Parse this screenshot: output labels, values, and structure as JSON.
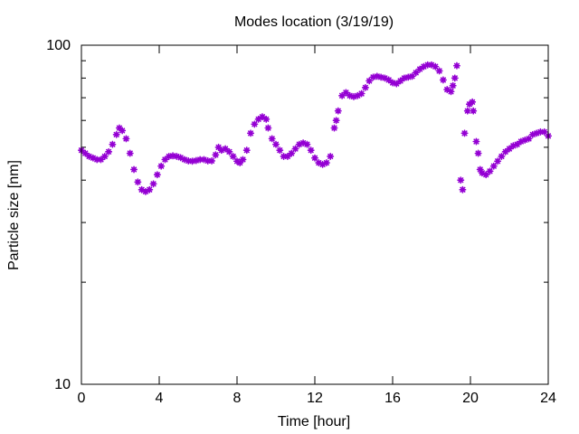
{
  "chart_data": {
    "type": "scatter",
    "title": "Modes location (3/19/19)",
    "xlabel": "Time [hour]",
    "ylabel": "Particle size [nm]",
    "xlim": [
      0,
      24
    ],
    "ylim": [
      10,
      100
    ],
    "yscale": "log",
    "grid": false,
    "legend": "none",
    "marker": "asterisk",
    "color": "#9400d3",
    "x_ticks": [
      0,
      4,
      8,
      12,
      16,
      20,
      24
    ],
    "x_tick_labels": [
      "0",
      "4",
      "8",
      "12",
      "16",
      "20",
      "24"
    ],
    "y_major_ticks": [
      10,
      100
    ],
    "y_tick_labels": [
      "10",
      "100"
    ],
    "y_minor_ticks": [
      20,
      30,
      40,
      50,
      60,
      70,
      80,
      90
    ],
    "series": [
      {
        "points": [
          [
            0.0,
            49
          ],
          [
            0.2,
            48
          ],
          [
            0.4,
            47
          ],
          [
            0.6,
            46.5
          ],
          [
            0.8,
            46
          ],
          [
            1.0,
            46
          ],
          [
            1.2,
            47
          ],
          [
            1.4,
            48.5
          ],
          [
            1.6,
            51
          ],
          [
            1.8,
            54.5
          ],
          [
            1.95,
            57
          ],
          [
            2.1,
            56
          ],
          [
            2.3,
            53
          ],
          [
            2.5,
            48
          ],
          [
            2.7,
            43
          ],
          [
            2.9,
            39.5
          ],
          [
            3.1,
            37.5
          ],
          [
            3.3,
            37
          ],
          [
            3.5,
            37.5
          ],
          [
            3.7,
            39
          ],
          [
            3.9,
            41.5
          ],
          [
            4.1,
            44
          ],
          [
            4.3,
            46
          ],
          [
            4.5,
            47
          ],
          [
            4.7,
            47.2
          ],
          [
            4.9,
            47
          ],
          [
            5.1,
            46.6
          ],
          [
            5.3,
            46
          ],
          [
            5.5,
            45.6
          ],
          [
            5.7,
            45.5
          ],
          [
            5.9,
            45.7
          ],
          [
            6.1,
            46
          ],
          [
            6.3,
            46
          ],
          [
            6.5,
            45.6
          ],
          [
            6.7,
            45.6
          ],
          [
            6.9,
            47.5
          ],
          [
            7.05,
            50
          ],
          [
            7.2,
            49
          ],
          [
            7.4,
            49.5
          ],
          [
            7.6,
            48.5
          ],
          [
            7.8,
            47
          ],
          [
            8.0,
            45.5
          ],
          [
            8.15,
            45
          ],
          [
            8.3,
            46
          ],
          [
            8.5,
            49
          ],
          [
            8.7,
            55
          ],
          [
            8.9,
            58.5
          ],
          [
            9.1,
            60.5
          ],
          [
            9.3,
            61.5
          ],
          [
            9.5,
            60.5
          ],
          [
            9.6,
            57
          ],
          [
            9.8,
            53
          ],
          [
            10.0,
            51
          ],
          [
            10.2,
            49
          ],
          [
            10.4,
            47
          ],
          [
            10.6,
            47
          ],
          [
            10.8,
            48
          ],
          [
            11.0,
            49.5
          ],
          [
            11.2,
            51
          ],
          [
            11.4,
            51.5
          ],
          [
            11.6,
            51
          ],
          [
            11.8,
            49
          ],
          [
            12.0,
            46.5
          ],
          [
            12.2,
            45
          ],
          [
            12.4,
            44.5
          ],
          [
            12.6,
            45
          ],
          [
            12.8,
            47
          ],
          [
            13.0,
            57
          ],
          [
            13.1,
            60
          ],
          [
            13.2,
            64
          ],
          [
            13.4,
            71
          ],
          [
            13.6,
            72.5
          ],
          [
            13.8,
            71
          ],
          [
            14.0,
            70.5
          ],
          [
            14.2,
            71
          ],
          [
            14.4,
            72
          ],
          [
            14.6,
            75
          ],
          [
            14.8,
            78.5
          ],
          [
            15.0,
            80.5
          ],
          [
            15.2,
            81
          ],
          [
            15.4,
            80.5
          ],
          [
            15.6,
            80
          ],
          [
            15.8,
            79
          ],
          [
            16.0,
            77.5
          ],
          [
            16.2,
            77
          ],
          [
            16.4,
            78.5
          ],
          [
            16.6,
            80
          ],
          [
            16.8,
            80.5
          ],
          [
            17.0,
            81
          ],
          [
            17.2,
            83
          ],
          [
            17.4,
            85
          ],
          [
            17.6,
            86.5
          ],
          [
            17.8,
            87.5
          ],
          [
            18.0,
            87.5
          ],
          [
            18.2,
            86.5
          ],
          [
            18.4,
            84
          ],
          [
            18.6,
            79
          ],
          [
            18.8,
            74
          ],
          [
            19.0,
            73
          ],
          [
            19.1,
            76
          ],
          [
            19.2,
            80
          ],
          [
            19.3,
            87
          ],
          [
            19.5,
            40
          ],
          [
            19.6,
            37.5
          ],
          [
            19.7,
            55
          ],
          [
            19.85,
            64
          ],
          [
            19.95,
            67
          ],
          [
            20.1,
            68
          ],
          [
            20.15,
            64
          ],
          [
            20.3,
            52
          ],
          [
            20.4,
            48
          ],
          [
            20.5,
            43
          ],
          [
            20.6,
            42
          ],
          [
            20.8,
            41.5
          ],
          [
            21.0,
            42.5
          ],
          [
            21.2,
            44
          ],
          [
            21.4,
            45.5
          ],
          [
            21.6,
            47
          ],
          [
            21.8,
            48.5
          ],
          [
            22.0,
            49.5
          ],
          [
            22.2,
            50.5
          ],
          [
            22.4,
            51
          ],
          [
            22.6,
            52
          ],
          [
            22.8,
            52.5
          ],
          [
            23.0,
            53
          ],
          [
            23.2,
            54.5
          ],
          [
            23.4,
            55
          ],
          [
            23.6,
            55.5
          ],
          [
            23.8,
            55.5
          ],
          [
            24.0,
            54
          ]
        ]
      }
    ]
  }
}
